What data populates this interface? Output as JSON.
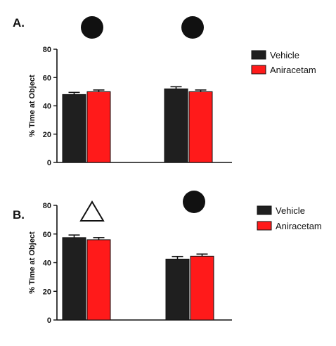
{
  "chart_data": [
    {
      "type": "bar",
      "panel_label": "A.",
      "categories": [
        "",
        ""
      ],
      "category_markers": [
        "circle",
        "circle"
      ],
      "series": [
        {
          "name": "Vehicle",
          "color": "#1f1f1f",
          "values": [
            48,
            52
          ],
          "errors": [
            1.5,
            1.5
          ]
        },
        {
          "name": "Aniracetam",
          "color": "#ff1a1a",
          "values": [
            50,
            50
          ],
          "errors": [
            1.2,
            1.2
          ]
        }
      ],
      "ylabel": "% Time at Object",
      "ylim": [
        0,
        80
      ],
      "yticks": [
        "0",
        "20",
        "40",
        "60",
        "80"
      ],
      "grid": false,
      "legend_position": "right"
    },
    {
      "type": "bar",
      "panel_label": "B.",
      "categories": [
        "",
        ""
      ],
      "category_markers": [
        "triangle",
        "circle"
      ],
      "series": [
        {
          "name": "Vehicle",
          "color": "#1f1f1f",
          "values": [
            57.5,
            42.5
          ],
          "errors": [
            1.8,
            1.8
          ]
        },
        {
          "name": "Aniracetam",
          "color": "#ff1a1a",
          "values": [
            56,
            44.5
          ],
          "errors": [
            1.5,
            1.5
          ]
        }
      ],
      "ylabel": "% Time at Object",
      "ylim": [
        0,
        80
      ],
      "yticks": [
        "0",
        "20",
        "40",
        "60",
        "80"
      ],
      "grid": false,
      "legend_position": "right"
    }
  ]
}
